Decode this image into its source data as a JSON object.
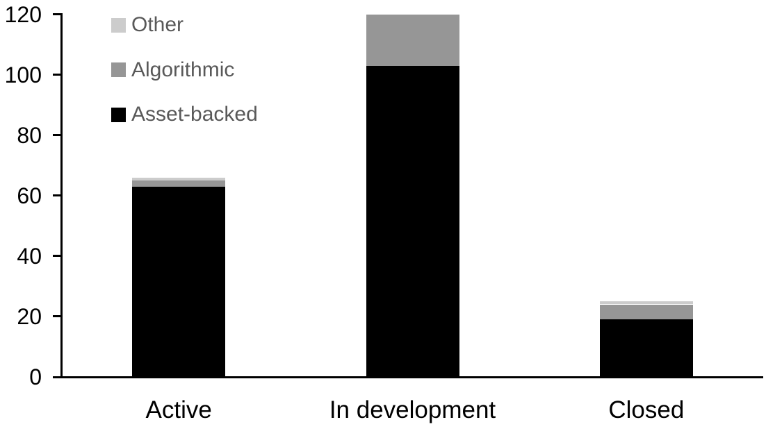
{
  "chart_data": {
    "type": "bar",
    "stacked": true,
    "title": "",
    "xlabel": "",
    "ylabel": "",
    "categories": [
      "Active",
      "In development",
      "Closed"
    ],
    "series": [
      {
        "name": "Asset-backed",
        "color": "#000000",
        "values": [
          63,
          103,
          19
        ]
      },
      {
        "name": "Algorithmic",
        "color": "#969696",
        "values": [
          2,
          17,
          5
        ]
      },
      {
        "name": "Other",
        "color": "#cccccc",
        "values": [
          1,
          0,
          1
        ]
      }
    ],
    "stack_totals": [
      66,
      120,
      25
    ],
    "ylim": [
      0,
      120
    ],
    "yticks": [
      0,
      20,
      40,
      60,
      80,
      100,
      120
    ],
    "grid": false,
    "legend": {
      "position": "top-left",
      "entries": [
        "Other",
        "Algorithmic",
        "Asset-backed"
      ]
    },
    "colors": {
      "axis": "#000000",
      "tick_label": "#000000",
      "legend_text": "#595959",
      "background": "#ffffff"
    }
  }
}
